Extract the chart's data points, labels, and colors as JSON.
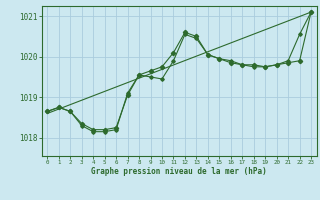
{
  "title": "Graphe pression niveau de la mer (hPa)",
  "bg_color": "#cce8f0",
  "grid_color": "#aaccdd",
  "line_color": "#2d6a2d",
  "xlim": [
    -0.5,
    23.5
  ],
  "ylim": [
    1017.55,
    1021.25
  ],
  "yticks": [
    1018,
    1019,
    1020,
    1021
  ],
  "xticks": [
    0,
    1,
    2,
    3,
    4,
    5,
    6,
    7,
    8,
    9,
    10,
    11,
    12,
    13,
    14,
    15,
    16,
    17,
    18,
    19,
    20,
    21,
    22,
    23
  ],
  "series_main": {
    "x": [
      0,
      1,
      2,
      3,
      4,
      5,
      6,
      7,
      8,
      9,
      10,
      11,
      12,
      13,
      14,
      15,
      16,
      17,
      18,
      19,
      20,
      21,
      22,
      23
    ],
    "y": [
      1018.65,
      1018.75,
      1018.65,
      1018.35,
      1018.2,
      1018.2,
      1018.25,
      1019.05,
      1019.55,
      1019.65,
      1019.75,
      1020.1,
      1020.6,
      1020.5,
      1020.05,
      1019.95,
      1019.85,
      1019.8,
      1019.8,
      1019.75,
      1019.8,
      1019.85,
      1019.9,
      1021.1
    ]
  },
  "series2": {
    "x": [
      0,
      1,
      2,
      3,
      4,
      5,
      6,
      7,
      8,
      9,
      10,
      11,
      12,
      13,
      14,
      15,
      16,
      17,
      18,
      19,
      20,
      21,
      22,
      23
    ],
    "y": [
      1018.65,
      1018.75,
      1018.65,
      1018.3,
      1018.15,
      1018.15,
      1018.2,
      1019.1,
      1019.55,
      1019.5,
      1019.45,
      1019.9,
      1020.55,
      1020.45,
      1020.05,
      1019.95,
      1019.9,
      1019.8,
      1019.75,
      1019.75,
      1019.8,
      1019.9,
      1020.55,
      1021.1
    ]
  },
  "series_trend": {
    "x": [
      0,
      23
    ],
    "y": [
      1018.6,
      1021.1
    ]
  }
}
